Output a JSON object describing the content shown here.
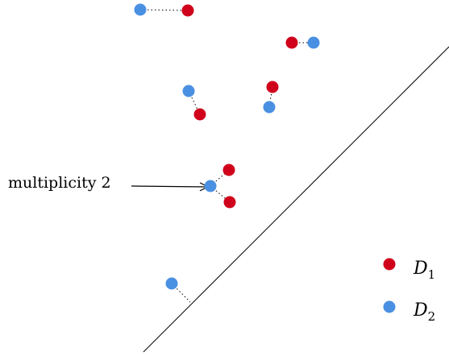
{
  "annotation": {
    "text": "multiplicity 2"
  },
  "legend": {
    "items": [
      {
        "base": "D",
        "sub": "1",
        "color": "#d0021b"
      },
      {
        "base": "D",
        "sub": "2",
        "color": "#4a90e2"
      }
    ]
  },
  "colors": {
    "d1": "#d0021b",
    "d2": "#4a90e2",
    "line": "#000000"
  }
}
